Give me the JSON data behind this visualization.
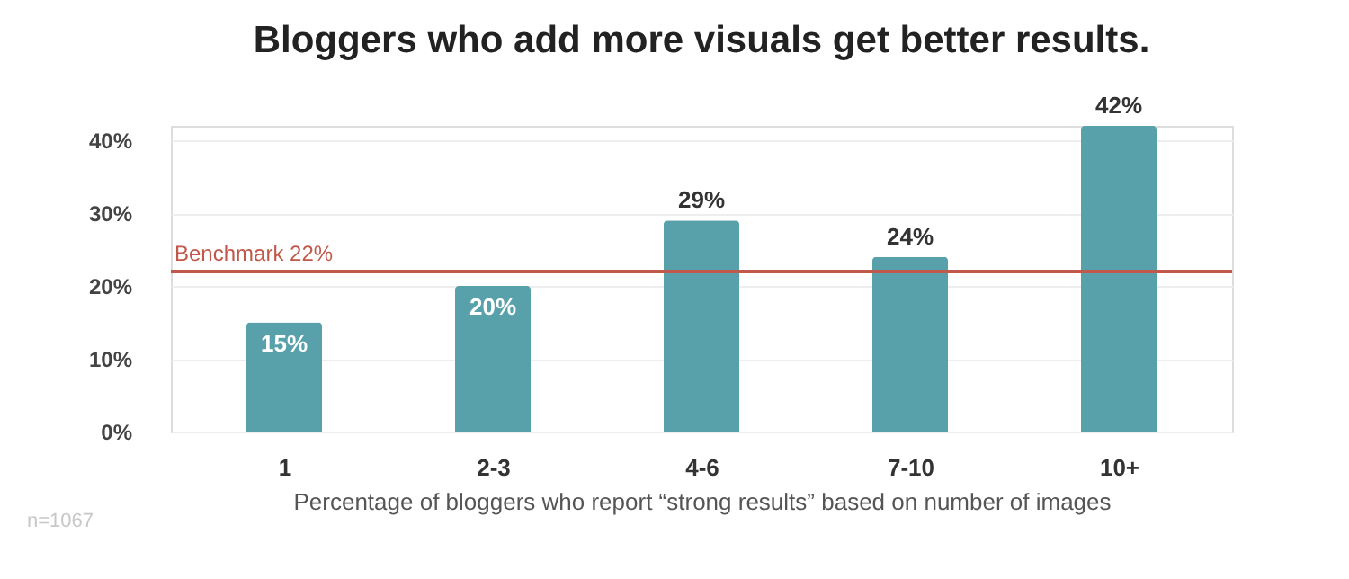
{
  "chart_data": {
    "type": "bar",
    "title": "Bloggers who add more visuals get better results.",
    "xlabel": "Percentage of bloggers who report “strong results” based on number of images",
    "categories": [
      "1",
      "2-3",
      "4-6",
      "7-10",
      "10+"
    ],
    "values": [
      15,
      20,
      29,
      24,
      42
    ],
    "color": "#58a1ab",
    "data_labels": true,
    "value_labels": [
      "15%",
      "20%",
      "29%",
      "24%",
      "42%"
    ],
    "ylim": [
      0,
      42
    ],
    "yticks": [
      {
        "value": 0,
        "label": "0%"
      },
      {
        "value": 10,
        "label": "10%"
      },
      {
        "value": 20,
        "label": "20%"
      },
      {
        "value": 30,
        "label": "30%"
      },
      {
        "value": 40,
        "label": "40%"
      }
    ],
    "grid": "y",
    "ref_lines": [
      {
        "axis": "y",
        "value": 22,
        "label": "Benchmark 22%",
        "color": "#c0594b"
      }
    ],
    "annotations": [
      "n=1067"
    ]
  }
}
